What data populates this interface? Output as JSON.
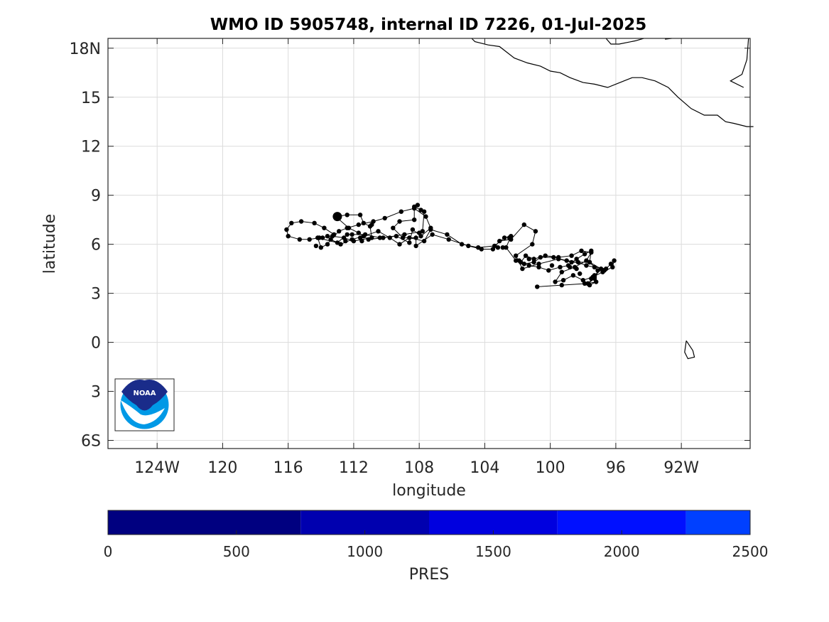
{
  "title": "WMO ID 5905748, internal ID 7226, 01-Jul-2025",
  "logo": {
    "text": "NOAA",
    "icon": "noaa-logo"
  },
  "map": {
    "xlabel": "longitude",
    "ylabel": "latitude",
    "lon_range": [
      -127,
      -87.8
    ],
    "lat_range": [
      -6.5,
      18.6
    ],
    "lon_ticks": [
      -124,
      -120,
      -116,
      -112,
      -108,
      -104,
      -100,
      -96,
      -92
    ],
    "lon_tick_labels": [
      "124W",
      "120",
      "116",
      "112",
      "108",
      "104",
      "100",
      "96",
      "92W"
    ],
    "lat_ticks": [
      18,
      15,
      12,
      9,
      6,
      3,
      0,
      -3,
      -6
    ],
    "lat_tick_labels": [
      "18N",
      "15",
      "12",
      "9",
      "6",
      "3",
      "0",
      "3",
      "6S"
    ],
    "grid": true
  },
  "coastline": [
    [
      [
        -96.6,
        18.6
      ],
      [
        -96.4,
        18.3
      ],
      [
        -95.9,
        18.2
      ],
      [
        -94.8,
        18.4
      ],
      [
        -93.8,
        18.6
      ]
    ],
    [
      [
        -124.3,
        18.6
      ],
      [
        -91.3,
        18.6
      ]
    ],
    [
      [
        -93.0,
        18.6
      ],
      [
        -92.6,
        18.6
      ]
    ],
    [
      [
        -88.1,
        18.6
      ],
      [
        -88.2,
        17.4
      ],
      [
        -88.6,
        16.4
      ],
      [
        -89.0,
        15.9
      ]
    ],
    [
      [
        -88.2,
        15.6
      ],
      [
        -89.0,
        15.9
      ]
    ]
  ],
  "coastline_main": [
    [
      -104.8,
      18.6
    ],
    [
      -104.6,
      18.4
    ],
    [
      -103.8,
      18.2
    ],
    [
      -103.1,
      18.1
    ],
    [
      -102.2,
      17.4
    ],
    [
      -101.4,
      17.1
    ],
    [
      -100.6,
      16.9
    ],
    [
      -100.0,
      16.6
    ],
    [
      -99.4,
      16.5
    ],
    [
      -98.8,
      16.2
    ],
    [
      -98.0,
      15.9
    ],
    [
      -97.3,
      15.8
    ],
    [
      -96.5,
      15.6
    ],
    [
      -95.5,
      16.0
    ],
    [
      -95.0,
      16.2
    ],
    [
      -94.4,
      16.2
    ],
    [
      -93.6,
      16.0
    ],
    [
      -92.8,
      15.6
    ],
    [
      -92.2,
      15.0
    ],
    [
      -91.4,
      14.3
    ],
    [
      -90.6,
      13.9
    ],
    [
      -89.8,
      13.9
    ],
    [
      -89.3,
      13.5
    ],
    [
      -88.8,
      13.4
    ],
    [
      -88.0,
      13.2
    ],
    [
      -87.6,
      13.2
    ]
  ],
  "islands": [
    [
      [
        -91.7,
        0.1
      ],
      [
        -91.3,
        -0.5
      ],
      [
        -91.2,
        -0.9
      ],
      [
        -91.6,
        -1.0
      ],
      [
        -91.8,
        -0.6
      ],
      [
        -91.7,
        0.1
      ]
    ]
  ],
  "chart_data": {
    "type": "scatter",
    "title": "WMO ID 5905748, internal ID 7226, 01-Jul-2025",
    "xlabel": "longitude",
    "ylabel": "latitude",
    "xlim": [
      -127,
      -87.8
    ],
    "ylim": [
      -6.5,
      18.6
    ],
    "track": [
      [
        -100.8,
        3.4
      ],
      [
        -99.3,
        3.5
      ],
      [
        -97.7,
        3.6
      ],
      [
        -97.3,
        4.0
      ],
      [
        -96.9,
        4.5
      ],
      [
        -97.6,
        4.9
      ],
      [
        -98.7,
        4.9
      ],
      [
        -99.5,
        5.1
      ],
      [
        -100.7,
        4.8
      ],
      [
        -101.7,
        4.5
      ],
      [
        -102.1,
        5.3
      ],
      [
        -101.1,
        6.0
      ],
      [
        -100.9,
        6.8
      ],
      [
        -101.6,
        7.2
      ],
      [
        -102.4,
        6.3
      ],
      [
        -103.1,
        6.2
      ],
      [
        -103.5,
        5.7
      ],
      [
        -104.2,
        5.7
      ],
      [
        -105.0,
        5.9
      ],
      [
        -106.2,
        6.3
      ],
      [
        -107.2,
        6.6
      ],
      [
        -108.2,
        5.9
      ],
      [
        -108.2,
        6.4
      ],
      [
        -109.0,
        6.4
      ],
      [
        -109.6,
        7.0
      ],
      [
        -109.2,
        7.4
      ],
      [
        -108.3,
        7.5
      ],
      [
        -108.3,
        8.3
      ],
      [
        -107.7,
        8.0
      ],
      [
        -107.8,
        6.8
      ],
      [
        -108.9,
        6.6
      ],
      [
        -110.2,
        6.4
      ],
      [
        -111.1,
        6.3
      ],
      [
        -111.7,
        6.7
      ],
      [
        -112.3,
        7.0
      ],
      [
        -113.1,
        7.7
      ],
      [
        -112.4,
        7.8
      ],
      [
        -111.6,
        7.8
      ],
      [
        -111.4,
        7.3
      ],
      [
        -111.0,
        7.1
      ],
      [
        -110.9,
        6.4
      ],
      [
        -112.0,
        6.2
      ],
      [
        -112.6,
        6.4
      ],
      [
        -113.3,
        6.5
      ],
      [
        -114.1,
        6.4
      ],
      [
        -114.7,
        6.3
      ],
      [
        -115.3,
        6.3
      ],
      [
        -116.0,
        6.5
      ],
      [
        -116.1,
        6.9
      ],
      [
        -115.8,
        7.3
      ],
      [
        -115.2,
        7.4
      ],
      [
        -114.4,
        7.3
      ],
      [
        -113.8,
        7.0
      ],
      [
        -113.2,
        6.6
      ],
      [
        -113.6,
        6.0
      ],
      [
        -114.0,
        5.8
      ],
      [
        -114.2,
        6.4
      ],
      [
        -113.0,
        6.1
      ],
      [
        -112.4,
        6.6
      ],
      [
        -111.3,
        6.6
      ],
      [
        -110.4,
        6.4
      ],
      [
        -109.4,
        6.5
      ],
      [
        -108.6,
        6.1
      ],
      [
        -108.4,
        6.9
      ],
      [
        -107.9,
        6.5
      ],
      [
        -107.3,
        7.0
      ],
      [
        -107.6,
        7.7
      ],
      [
        -108.3,
        8.2
      ],
      [
        -109.1,
        8.0
      ],
      [
        -110.1,
        7.6
      ],
      [
        -110.8,
        7.4
      ],
      [
        -111.7,
        7.2
      ],
      [
        -112.4,
        7.0
      ],
      [
        -112.9,
        6.8
      ],
      [
        -113.4,
        6.3
      ],
      [
        -112.8,
        6.0
      ],
      [
        -112.1,
        6.3
      ],
      [
        -111.4,
        6.5
      ],
      [
        -110.5,
        6.8
      ],
      [
        -109.8,
        6.4
      ],
      [
        -109.2,
        6.0
      ],
      [
        -108.6,
        6.4
      ],
      [
        -107.7,
        6.2
      ],
      [
        -107.3,
        6.9
      ],
      [
        -106.3,
        6.6
      ],
      [
        -105.4,
        6.0
      ],
      [
        -104.4,
        5.8
      ],
      [
        -103.4,
        5.9
      ],
      [
        -102.8,
        6.4
      ],
      [
        -102.4,
        6.5
      ],
      [
        -102.7,
        5.8
      ],
      [
        -102.1,
        5.0
      ],
      [
        -101.6,
        4.8
      ],
      [
        -101.0,
        4.9
      ],
      [
        -100.6,
        5.2
      ],
      [
        -99.8,
        5.2
      ],
      [
        -99.0,
        5.0
      ],
      [
        -98.3,
        4.9
      ],
      [
        -97.8,
        4.7
      ],
      [
        -97.3,
        4.6
      ],
      [
        -96.6,
        4.5
      ],
      [
        -96.3,
        4.8
      ],
      [
        -96.1,
        5.0
      ],
      [
        -96.2,
        4.6
      ],
      [
        -96.8,
        4.3
      ],
      [
        -97.4,
        4.0
      ],
      [
        -98.0,
        3.8
      ],
      [
        -98.6,
        4.1
      ],
      [
        -99.2,
        3.8
      ],
      [
        -99.7,
        3.7
      ],
      [
        -99.3,
        4.3
      ],
      [
        -98.5,
        4.6
      ],
      [
        -97.8,
        5.0
      ],
      [
        -97.5,
        5.5
      ],
      [
        -98.1,
        5.6
      ],
      [
        -98.7,
        5.3
      ],
      [
        -99.5,
        5.2
      ],
      [
        -100.3,
        5.3
      ],
      [
        -101.0,
        5.1
      ],
      [
        -101.5,
        5.3
      ],
      [
        -101.8,
        4.9
      ],
      [
        -101.3,
        4.7
      ],
      [
        -100.7,
        4.6
      ],
      [
        -100.1,
        4.4
      ],
      [
        -99.4,
        4.6
      ],
      [
        -98.9,
        4.7
      ],
      [
        -98.4,
        5.1
      ],
      [
        -97.9,
        5.4
      ],
      [
        -97.5,
        5.6
      ],
      [
        -97.6,
        4.9
      ],
      [
        -97.1,
        4.4
      ],
      [
        -97.3,
        3.9
      ],
      [
        -97.7,
        3.6
      ],
      [
        -97.2,
        3.7
      ],
      [
        -97.6,
        3.5
      ]
    ],
    "extra_points": [
      [
        -97.9,
        3.6
      ],
      [
        -97.5,
        3.9
      ],
      [
        -97.3,
        4.1
      ],
      [
        -96.7,
        4.4
      ],
      [
        -98.2,
        4.2
      ],
      [
        -98.4,
        4.5
      ],
      [
        -98.8,
        4.6
      ],
      [
        -99.9,
        4.7
      ],
      [
        -101.3,
        5.1
      ],
      [
        -101.9,
        5.0
      ],
      [
        -102.5,
        6.4
      ],
      [
        -102.9,
        5.8
      ],
      [
        -103.2,
        5.8
      ],
      [
        -111.5,
        6.2
      ],
      [
        -111.6,
        6.4
      ],
      [
        -112.1,
        6.6
      ],
      [
        -112.5,
        6.2
      ],
      [
        -113.6,
        6.5
      ],
      [
        -113.9,
        6.4
      ],
      [
        -114.3,
        5.9
      ],
      [
        -110.9,
        7.2
      ],
      [
        -108.0,
        6.7
      ],
      [
        -107.9,
        8.1
      ],
      [
        -108.1,
        8.4
      ]
    ],
    "start_point": [
      -113.0,
      7.7
    ]
  },
  "colorbar": {
    "label": "PRES",
    "ticks": [
      0,
      500,
      1000,
      1500,
      2000,
      2500
    ],
    "range": [
      0,
      2500
    ],
    "bands": [
      {
        "from": 0,
        "to": 750,
        "color": "#000080"
      },
      {
        "from": 750,
        "to": 1250,
        "color": "#0000AF"
      },
      {
        "from": 1250,
        "to": 1750,
        "color": "#0000DF"
      },
      {
        "from": 1750,
        "to": 2250,
        "color": "#0010FF"
      },
      {
        "from": 2250,
        "to": 2500,
        "color": "#0040FF"
      }
    ]
  }
}
